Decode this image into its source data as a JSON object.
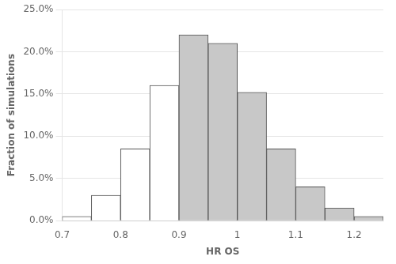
{
  "chart_data": {
    "type": "histogram",
    "bins": [
      0.7,
      0.75,
      0.8,
      0.85,
      0.9,
      0.95,
      1.0,
      1.05,
      1.1,
      1.15,
      1.2,
      1.25
    ],
    "values": [
      0.005,
      0.03,
      0.085,
      0.16,
      0.22,
      0.21,
      0.152,
      0.085,
      0.04,
      0.015,
      0.005
    ],
    "colors": [
      "#ffffff",
      "#ffffff",
      "#ffffff",
      "#ffffff",
      "#c8c8c8",
      "#c8c8c8",
      "#c8c8c8",
      "#c8c8c8",
      "#c8c8c8",
      "#c8c8c8",
      "#c8c8c8"
    ],
    "color": "#555555",
    "xlabel": "HR OS",
    "ylabel": "Fraction of simulations",
    "xlim": [
      0.7,
      1.25
    ],
    "ylim": [
      0.0,
      0.25
    ],
    "xticks": [
      0.7,
      0.8,
      0.9,
      1,
      1.1,
      1.2
    ],
    "yticks": [
      {
        "value": 0.0,
        "label": "0.0%"
      },
      {
        "value": 0.05,
        "label": "5.0%"
      },
      {
        "value": 0.1,
        "label": "10.0%"
      },
      {
        "value": 0.15,
        "label": "15.0%"
      },
      {
        "value": 0.2,
        "label": "20.0%"
      },
      {
        "value": 0.25,
        "label": "25.0%"
      }
    ],
    "grid": "y"
  }
}
